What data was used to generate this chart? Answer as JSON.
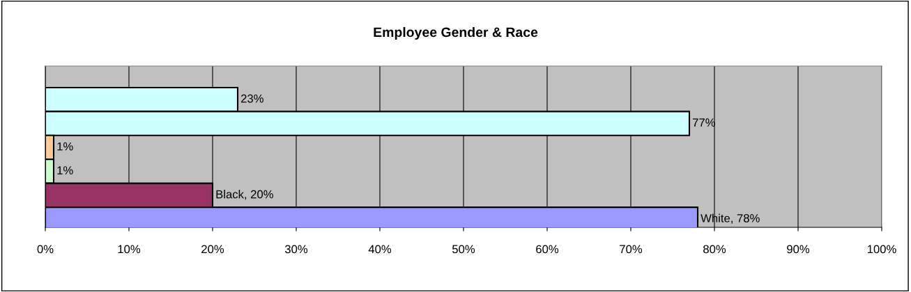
{
  "chart_data": {
    "type": "bar",
    "orientation": "horizontal",
    "title": "Employee Gender & Race",
    "categories": [
      null,
      null,
      null,
      null,
      null,
      null
    ],
    "values": [
      23,
      77,
      1,
      1,
      20,
      78
    ],
    "colors": [
      "#ccffff",
      "#ccffff",
      "#ffcc99",
      "#ccffcc",
      "#993366",
      "#9999ff"
    ],
    "value_labels": [
      "23%",
      "77%",
      "1%",
      "1%",
      "Black, 20%",
      "White, 78%"
    ],
    "xlim": [
      0,
      100
    ],
    "xticks": [
      {
        "value": 0,
        "label": "0%"
      },
      {
        "value": 10,
        "label": "10%"
      },
      {
        "value": 20,
        "label": "20%"
      },
      {
        "value": 30,
        "label": "30%"
      },
      {
        "value": 40,
        "label": "40%"
      },
      {
        "value": 50,
        "label": "50%"
      },
      {
        "value": 60,
        "label": "60%"
      },
      {
        "value": 70,
        "label": "70%"
      },
      {
        "value": 80,
        "label": "80%"
      },
      {
        "value": 90,
        "label": "90%"
      },
      {
        "value": 100,
        "label": "100%"
      }
    ],
    "grid": "x",
    "legend": false,
    "tick_labels": "x"
  }
}
